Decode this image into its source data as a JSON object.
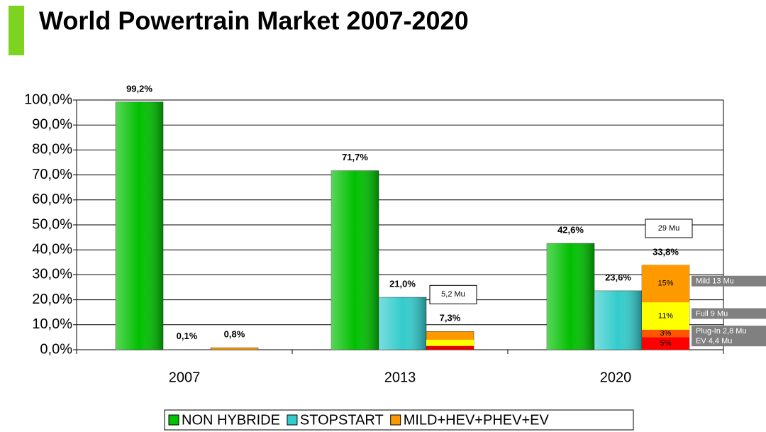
{
  "chart_data": {
    "type": "bar",
    "title": "World Powertrain Market 2007-2020",
    "categories": [
      "2007",
      "2013",
      "2020"
    ],
    "series": [
      {
        "name": "NON HYBRIDE",
        "color": "#00c000",
        "values": [
          99.2,
          71.7,
          42.6
        ],
        "value_labels": [
          "99,2%",
          "71,7%",
          "42,6%"
        ]
      },
      {
        "name": "STOPSTART",
        "color": "#33cccc",
        "values": [
          0.1,
          21.0,
          23.6
        ],
        "value_labels": [
          "0,1%",
          "21,0%",
          "23,6%"
        ]
      },
      {
        "name": "MILD+HEV+PHEV+EV",
        "color": "#ff9900",
        "values": [
          0.8,
          7.3,
          33.8
        ],
        "value_labels": [
          "0,8%",
          "7,3%",
          "33,8%"
        ]
      }
    ],
    "breakdown": [
      null,
      {
        "callout": "5,2 Mu",
        "segments": [
          {
            "color": "#e00000",
            "value": 1.5
          },
          {
            "color": "#ffff00",
            "value": 2.5
          }
        ]
      },
      {
        "callout": "29 Mu",
        "segments": [
          {
            "name": "EV 4,4 Mu",
            "color": "#ff0000",
            "value": 5,
            "label": "5%"
          },
          {
            "name": "Plug-In 2,8 Mu",
            "color": "#ff5500",
            "value": 3,
            "label": "3%"
          },
          {
            "name": "Full 9 Mu",
            "color": "#ffff00",
            "value": 11,
            "label": "11%"
          },
          {
            "name": "Mild 13 Mu",
            "color": "#ff9900",
            "value": 15,
            "label": "15%"
          }
        ]
      }
    ],
    "ylim": [
      0,
      100
    ],
    "yticks": [
      {
        "value": 0,
        "label": "0,0%"
      },
      {
        "value": 10,
        "label": "10,0%"
      },
      {
        "value": 20,
        "label": "20,0%"
      },
      {
        "value": 30,
        "label": "30,0%"
      },
      {
        "value": 40,
        "label": "40,0%"
      },
      {
        "value": 50,
        "label": "50,0%"
      },
      {
        "value": 60,
        "label": "60,0%"
      },
      {
        "value": 70,
        "label": "70,0%"
      },
      {
        "value": 80,
        "label": "80,0%"
      },
      {
        "value": 90,
        "label": "90,0%"
      },
      {
        "value": 100,
        "label": "100,0%"
      }
    ],
    "grid": true
  }
}
